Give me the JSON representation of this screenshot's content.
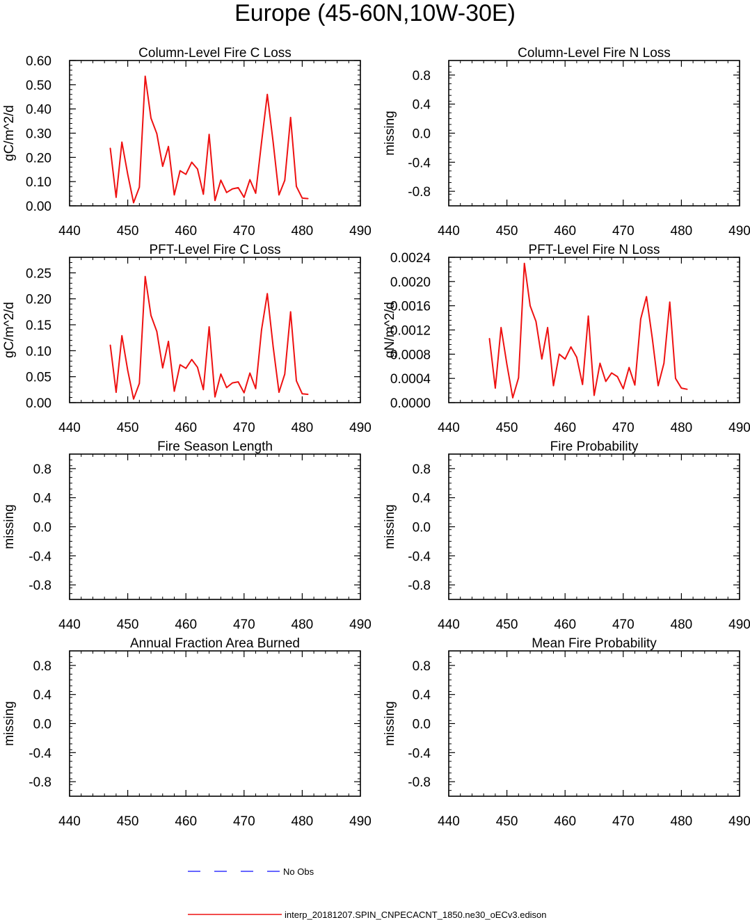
{
  "page_title": "Europe (45-60N,10W-30E)",
  "legend": {
    "no_obs_label": "No Obs",
    "model_label": "interp_20181207.SPIN_CNPECACNT_1850.ne30_oECv3.edison",
    "no_obs_color": "#3333ff",
    "model_color": "#ee1111"
  },
  "chart_data": [
    {
      "type": "line",
      "title": "Column-Level Fire C Loss",
      "ylabel": "gC/m^2/d",
      "xlim": [
        440,
        490
      ],
      "ylim": [
        0,
        0.6
      ],
      "xticks": [
        "440",
        "450",
        "460",
        "470",
        "480",
        "490"
      ],
      "yticks": [
        "0.00",
        "0.10",
        "0.20",
        "0.30",
        "0.40",
        "0.50",
        "0.60"
      ],
      "series": [
        {
          "x": [
            447,
            448,
            449,
            450,
            451,
            452,
            453,
            454,
            455,
            456,
            457,
            458,
            459,
            460,
            461,
            462,
            463,
            464,
            465,
            466,
            467,
            468,
            469,
            470,
            471,
            472,
            473,
            474,
            475,
            476,
            477,
            478,
            479,
            480,
            481
          ],
          "values": [
            0.238,
            0.035,
            0.263,
            0.13,
            0.013,
            0.077,
            0.535,
            0.362,
            0.298,
            0.163,
            0.245,
            0.045,
            0.145,
            0.13,
            0.18,
            0.152,
            0.048,
            0.295,
            0.022,
            0.106,
            0.055,
            0.07,
            0.075,
            0.035,
            0.108,
            0.052,
            0.262,
            0.46,
            0.263,
            0.045,
            0.105,
            0.365,
            0.08,
            0.032,
            0.03
          ]
        }
      ]
    },
    {
      "type": "line",
      "title": "Column-Level Fire N Loss",
      "ylabel": "missing",
      "xlim": [
        440,
        490
      ],
      "ylim": [
        -1,
        1
      ],
      "xticks": [
        "440",
        "450",
        "460",
        "470",
        "480",
        "490"
      ],
      "yticks": [
        "-0.8",
        "-0.4",
        "0.0",
        "0.4",
        "0.8"
      ],
      "series": []
    },
    {
      "type": "line",
      "title": "PFT-Level Fire C Loss",
      "ylabel": "gC/m^2/d",
      "xlim": [
        440,
        490
      ],
      "ylim": [
        0,
        0.28
      ],
      "xticks": [
        "440",
        "450",
        "460",
        "470",
        "480",
        "490"
      ],
      "yticks": [
        "0.00",
        "0.05",
        "0.10",
        "0.15",
        "0.20",
        "0.25"
      ],
      "series": [
        {
          "x": [
            447,
            448,
            449,
            450,
            451,
            452,
            453,
            454,
            455,
            456,
            457,
            458,
            459,
            460,
            461,
            462,
            463,
            464,
            465,
            466,
            467,
            468,
            469,
            470,
            471,
            472,
            473,
            474,
            475,
            476,
            477,
            478,
            479,
            480,
            481
          ],
          "values": [
            0.111,
            0.02,
            0.129,
            0.062,
            0.007,
            0.037,
            0.243,
            0.168,
            0.137,
            0.067,
            0.118,
            0.022,
            0.073,
            0.066,
            0.083,
            0.068,
            0.025,
            0.146,
            0.011,
            0.055,
            0.029,
            0.038,
            0.04,
            0.019,
            0.057,
            0.027,
            0.14,
            0.21,
            0.108,
            0.02,
            0.055,
            0.175,
            0.042,
            0.017,
            0.016
          ]
        }
      ]
    },
    {
      "type": "line",
      "title": "PFT-Level Fire N Loss",
      "ylabel": "gN/m^2/d",
      "xlim": [
        440,
        490
      ],
      "ylim": [
        0,
        0.0024
      ],
      "xticks": [
        "440",
        "450",
        "460",
        "470",
        "480",
        "490"
      ],
      "yticks": [
        "0.0000",
        "0.0004",
        "0.0008",
        "0.0012",
        "0.0016",
        "0.0020",
        "0.0024"
      ],
      "series": [
        {
          "x": [
            447,
            448,
            449,
            450,
            451,
            452,
            453,
            454,
            455,
            456,
            457,
            458,
            459,
            460,
            461,
            462,
            463,
            464,
            465,
            466,
            467,
            468,
            469,
            470,
            471,
            472,
            473,
            474,
            475,
            476,
            477,
            478,
            479,
            480,
            481
          ],
          "values": [
            0.00106,
            0.00024,
            0.00124,
            0.00063,
            8e-05,
            0.00041,
            0.0023,
            0.0016,
            0.00134,
            0.00072,
            0.00124,
            0.00028,
            0.0008,
            0.00072,
            0.00092,
            0.00075,
            0.0003,
            0.00143,
            0.00012,
            0.00065,
            0.00035,
            0.00049,
            0.00043,
            0.00023,
            0.00058,
            0.00029,
            0.00138,
            0.00175,
            0.00106,
            0.00028,
            0.00065,
            0.00166,
            0.0004,
            0.00024,
            0.00022
          ]
        }
      ]
    },
    {
      "type": "line",
      "title": "Fire Season Length",
      "ylabel": "missing",
      "xlim": [
        440,
        490
      ],
      "ylim": [
        -1,
        1
      ],
      "xticks": [
        "440",
        "450",
        "460",
        "470",
        "480",
        "490"
      ],
      "yticks": [
        "-0.8",
        "-0.4",
        "0.0",
        "0.4",
        "0.8"
      ],
      "series": []
    },
    {
      "type": "line",
      "title": "Fire Probability",
      "ylabel": "missing",
      "xlim": [
        440,
        490
      ],
      "ylim": [
        -1,
        1
      ],
      "xticks": [
        "440",
        "450",
        "460",
        "470",
        "480",
        "490"
      ],
      "yticks": [
        "-0.8",
        "-0.4",
        "0.0",
        "0.4",
        "0.8"
      ],
      "series": []
    },
    {
      "type": "line",
      "title": "Annual Fraction Area Burned",
      "ylabel": "missing",
      "xlim": [
        440,
        490
      ],
      "ylim": [
        -1,
        1
      ],
      "xticks": [
        "440",
        "450",
        "460",
        "470",
        "480",
        "490"
      ],
      "yticks": [
        "-0.8",
        "-0.4",
        "0.0",
        "0.4",
        "0.8"
      ],
      "series": []
    },
    {
      "type": "line",
      "title": "Mean Fire Probability",
      "ylabel": "missing",
      "xlim": [
        440,
        490
      ],
      "ylim": [
        -1,
        1
      ],
      "xticks": [
        "440",
        "450",
        "460",
        "470",
        "480",
        "490"
      ],
      "yticks": [
        "-0.8",
        "-0.4",
        "0.0",
        "0.4",
        "0.8"
      ],
      "series": []
    }
  ]
}
